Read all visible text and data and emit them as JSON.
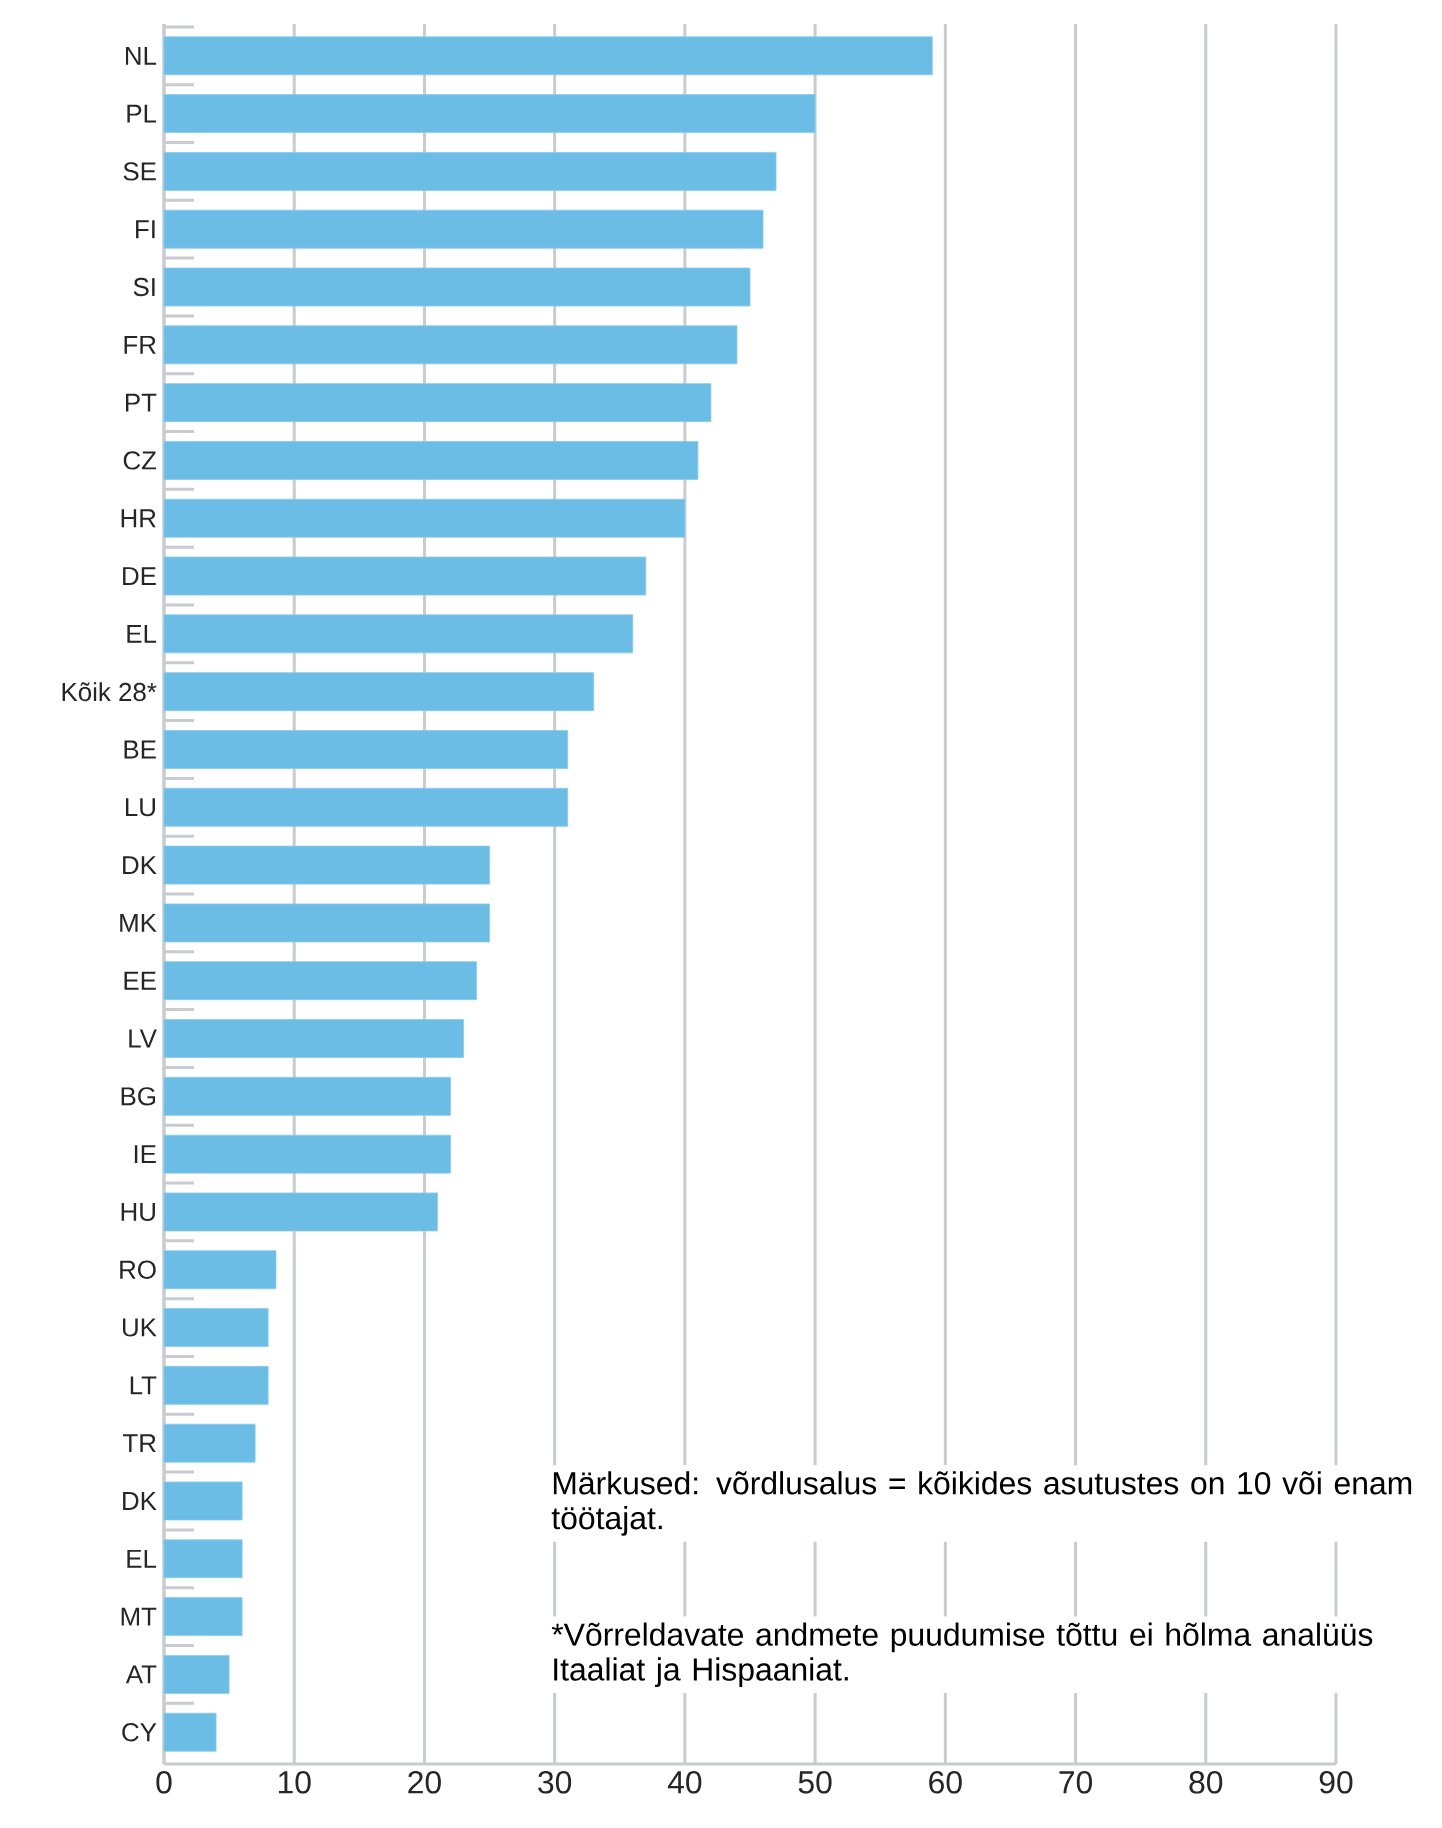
{
  "chart_data": {
    "type": "bar",
    "orientation": "horizontal",
    "categories": [
      "NL",
      "PL",
      "SE",
      "FI",
      "SI",
      "FR",
      "PT",
      "CZ",
      "HR",
      "DE",
      "EL",
      "Kõik 28*",
      "BE",
      "LU",
      "DK",
      "MK",
      "EE",
      "LV",
      "BG",
      "IE",
      "HU",
      "RO",
      "UK",
      "LT",
      "TR",
      "DK",
      "EL",
      "MT",
      "AT",
      "CY"
    ],
    "values": [
      59,
      50,
      47,
      46,
      45,
      44,
      42,
      41,
      40,
      37,
      36,
      33,
      31,
      31,
      25,
      25,
      24,
      23,
      22,
      22,
      21,
      8.6,
      8,
      8,
      7,
      6,
      6,
      6,
      5,
      4
    ],
    "color": "#6cbde6",
    "xlim": [
      0,
      90
    ],
    "xticks": [
      0,
      10,
      20,
      30,
      40,
      50,
      60,
      70,
      80,
      90
    ],
    "grid": "x",
    "annotations": [
      "Märkused: võrdlusalus = kõikides asutustes on 10 või enam töötajat.",
      "*Võrreldavate andmete puudumise tõttu ei hõlma analüüs Itaaliat ja Hispaaniat."
    ]
  }
}
